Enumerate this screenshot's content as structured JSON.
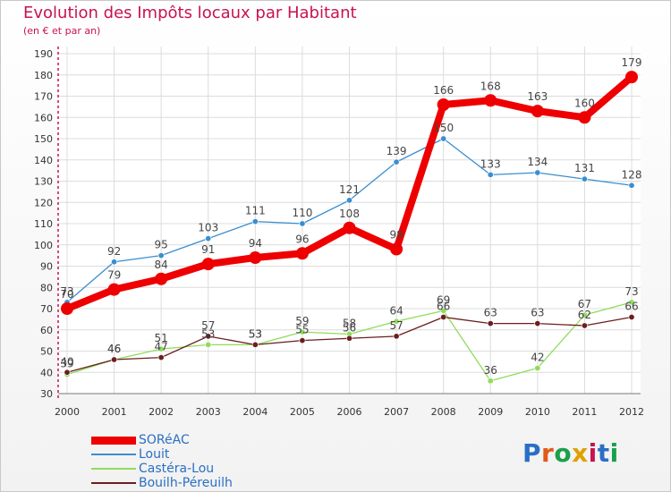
{
  "title": "Evolution des Impôts locaux par Habitant",
  "subtitle": "(en € et par an)",
  "brand": {
    "text": "Proxiti"
  },
  "colors": {
    "accent": "#c9124e",
    "legend_text": "#2a6fc4"
  },
  "chart_data": {
    "type": "line",
    "categories": [
      "2000",
      "2001",
      "2002",
      "2003",
      "2004",
      "2005",
      "2006",
      "2007",
      "2008",
      "2009",
      "2010",
      "2011",
      "2012"
    ],
    "ylim": [
      30,
      190
    ],
    "yticks": [
      30,
      40,
      50,
      60,
      70,
      80,
      90,
      100,
      110,
      120,
      130,
      140,
      150,
      160,
      170,
      180,
      190
    ],
    "series": [
      {
        "name": "SORéAC",
        "color": "#ee0000",
        "values": [
          70,
          79,
          84,
          91,
          94,
          96,
          108,
          98,
          166,
          168,
          163,
          160,
          179
        ],
        "labels": [
          "70",
          "79",
          "84",
          "91",
          "94",
          "96",
          "108",
          "98",
          "166",
          "168",
          "163",
          "160",
          "179"
        ]
      },
      {
        "name": "Louit",
        "color": "#3a8ed0",
        "values": [
          73,
          92,
          95,
          103,
          111,
          110,
          121,
          139,
          150,
          133,
          134,
          131,
          128
        ],
        "labels": [
          "73",
          "92",
          "95",
          "103",
          "111",
          "110",
          "121",
          "139",
          "150",
          "133",
          "134",
          "131",
          "128"
        ]
      },
      {
        "name": "Castéra-Lou",
        "color": "#8fdc5a",
        "values": [
          39,
          46,
          51,
          53,
          53,
          59,
          58,
          64,
          69,
          36,
          42,
          67,
          73
        ],
        "labels": [
          "39",
          "46",
          "51",
          "53",
          "53",
          "59",
          "58",
          "64",
          "69",
          "36",
          "42",
          "67",
          "73"
        ]
      },
      {
        "name": "Bouilh-Péreuilh",
        "color": "#6b1e1e",
        "values": [
          40,
          46,
          47,
          57,
          53,
          55,
          56,
          57,
          66,
          63,
          63,
          62,
          66
        ],
        "labels": [
          "40",
          "46",
          "47",
          "57",
          "53",
          "55",
          "56",
          "57",
          "66",
          "63",
          "63",
          "62",
          "66"
        ]
      }
    ]
  }
}
